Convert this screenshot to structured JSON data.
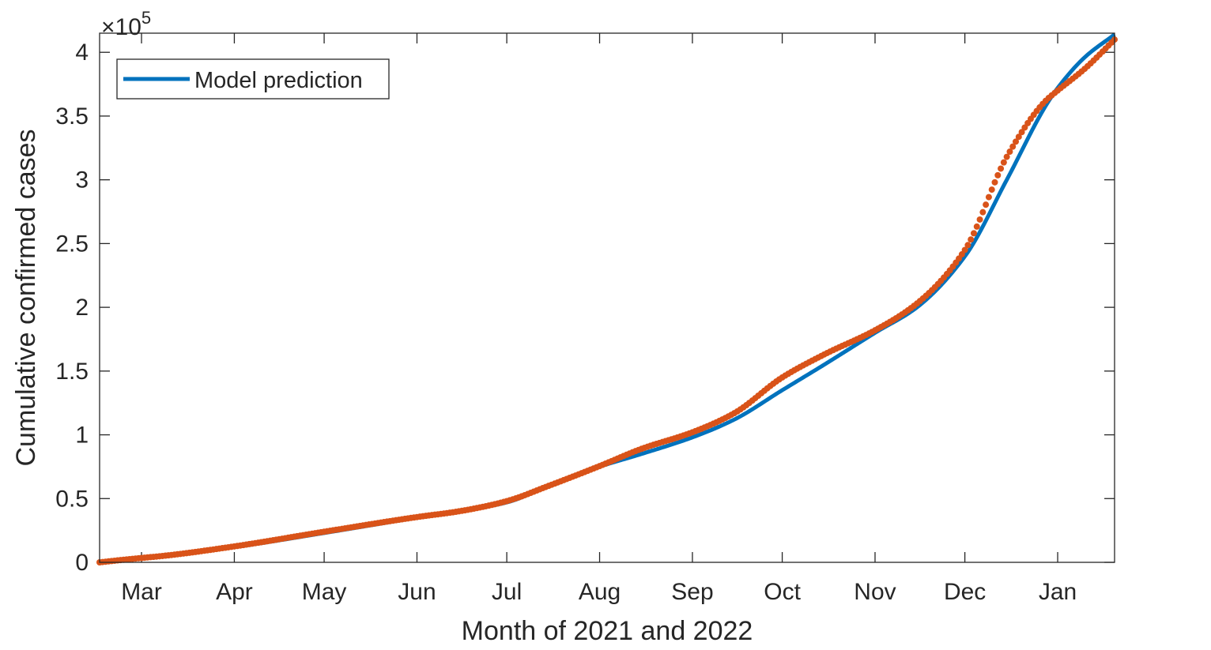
{
  "chart_data": {
    "type": "line",
    "title": "",
    "xlabel": "Month of 2021 and 2022",
    "ylabel": "Cumulative confirmed cases",
    "y_exponent_label": {
      "base": "×10",
      "power": "5"
    },
    "xlim": [
      "2021-02-15",
      "2022-01-20"
    ],
    "ylim": [
      0,
      415000
    ],
    "x_ticks": [
      {
        "date": "2021-03-01",
        "label": "Mar"
      },
      {
        "date": "2021-04-01",
        "label": "Apr"
      },
      {
        "date": "2021-05-01",
        "label": "May"
      },
      {
        "date": "2021-06-01",
        "label": "Jun"
      },
      {
        "date": "2021-07-01",
        "label": "Jul"
      },
      {
        "date": "2021-08-01",
        "label": "Aug"
      },
      {
        "date": "2021-09-01",
        "label": "Sep"
      },
      {
        "date": "2021-10-01",
        "label": "Oct"
      },
      {
        "date": "2021-11-01",
        "label": "Nov"
      },
      {
        "date": "2021-12-01",
        "label": "Dec"
      },
      {
        "date": "2022-01-01",
        "label": "Jan"
      }
    ],
    "y_ticks": [
      {
        "value": 0,
        "label": "0"
      },
      {
        "value": 50000,
        "label": "0.5"
      },
      {
        "value": 100000,
        "label": "1"
      },
      {
        "value": 150000,
        "label": "1.5"
      },
      {
        "value": 200000,
        "label": "2"
      },
      {
        "value": 250000,
        "label": "2.5"
      },
      {
        "value": 300000,
        "label": "3"
      },
      {
        "value": 350000,
        "label": "3.5"
      },
      {
        "value": 400000,
        "label": "4"
      }
    ],
    "grid": false,
    "box": true,
    "legend": {
      "position": "top-left",
      "entries": [
        "Model prediction"
      ]
    },
    "series": [
      {
        "name": "Model prediction",
        "style": "line",
        "color": "#0072BD",
        "points": [
          [
            "2021-02-15",
            0
          ],
          [
            "2021-02-25",
            3000
          ],
          [
            "2021-03-10",
            6000
          ],
          [
            "2021-04-01",
            12000
          ],
          [
            "2021-05-01",
            23000
          ],
          [
            "2021-06-01",
            35000
          ],
          [
            "2021-06-15",
            40000
          ],
          [
            "2021-07-01",
            47000
          ],
          [
            "2021-07-15",
            60000
          ],
          [
            "2021-08-01",
            75000
          ],
          [
            "2021-08-15",
            85000
          ],
          [
            "2021-09-01",
            98000
          ],
          [
            "2021-09-15",
            112000
          ],
          [
            "2021-10-01",
            135000
          ],
          [
            "2021-10-15",
            155000
          ],
          [
            "2021-11-01",
            180000
          ],
          [
            "2021-11-15",
            200000
          ],
          [
            "2021-12-01",
            240000
          ],
          [
            "2021-12-15",
            300000
          ],
          [
            "2021-12-28",
            358000
          ],
          [
            "2022-01-01",
            372000
          ],
          [
            "2022-01-10",
            396000
          ],
          [
            "2022-01-20",
            414000
          ]
        ]
      },
      {
        "name": "",
        "style": "markers",
        "color": "#D95319",
        "points": [
          [
            "2021-02-15",
            0
          ],
          [
            "2021-02-25",
            2500
          ],
          [
            "2021-03-10",
            5500
          ],
          [
            "2021-04-01",
            12500
          ],
          [
            "2021-05-01",
            24000
          ],
          [
            "2021-06-01",
            35500
          ],
          [
            "2021-06-15",
            40000
          ],
          [
            "2021-07-01",
            48000
          ],
          [
            "2021-07-15",
            60000
          ],
          [
            "2021-08-01",
            75500
          ],
          [
            "2021-08-15",
            89000
          ],
          [
            "2021-09-01",
            102000
          ],
          [
            "2021-09-15",
            117000
          ],
          [
            "2021-10-01",
            145000
          ],
          [
            "2021-10-15",
            163000
          ],
          [
            "2021-11-01",
            182000
          ],
          [
            "2021-11-15",
            203000
          ],
          [
            "2021-12-01",
            245000
          ],
          [
            "2021-12-15",
            318000
          ],
          [
            "2021-12-28",
            362000
          ],
          [
            "2022-01-01",
            370000
          ],
          [
            "2022-01-10",
            387000
          ],
          [
            "2022-01-20",
            410000
          ]
        ]
      }
    ]
  }
}
